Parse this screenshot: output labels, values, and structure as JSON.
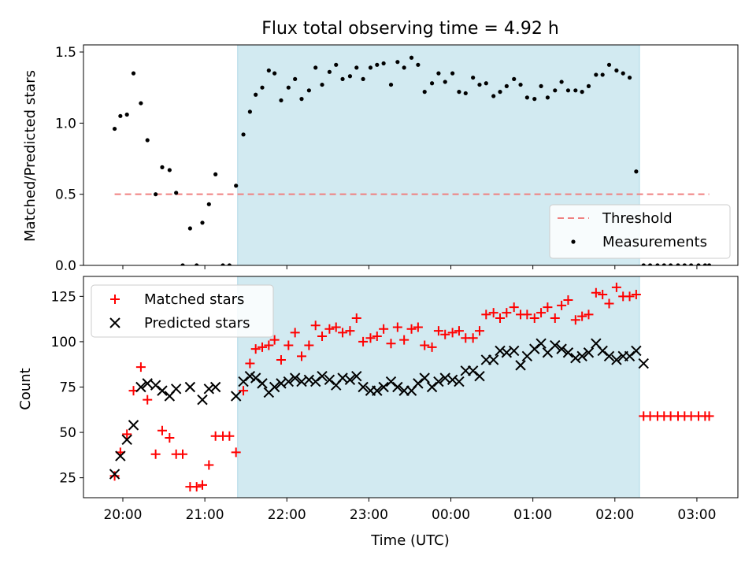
{
  "chart_data": [
    {
      "type": "scatter",
      "title": "Flux total observing time = 4.92 h",
      "ylabel": "Matched/Predicted stars",
      "xlabel": "",
      "ylim": [
        0,
        1.55
      ],
      "yticks": [
        0.0,
        0.5,
        1.0,
        1.5
      ],
      "ytick_labels": [
        "0.0",
        "0.5",
        "1.0",
        "1.5"
      ],
      "x_unit": "hours after 20:00 UTC",
      "xlim": [
        -0.48,
        7.5
      ],
      "shaded_region": {
        "x_start": 1.4,
        "x_end": 6.3,
        "color": "#add8e6"
      },
      "legend": {
        "placement": "lower right",
        "entries": [
          "Threshold",
          "Measurements"
        ]
      },
      "threshold": {
        "name": "Threshold",
        "y": 0.5,
        "x_start": -0.1,
        "x_end": 7.15,
        "color": "#f08080"
      },
      "series": [
        {
          "name": "Measurements",
          "color": "#000000",
          "points": [
            [
              -0.1,
              0.96
            ],
            [
              -0.03,
              1.05
            ],
            [
              0.05,
              1.06
            ],
            [
              0.13,
              1.35
            ],
            [
              0.22,
              1.14
            ],
            [
              0.3,
              0.88
            ],
            [
              0.4,
              0.5
            ],
            [
              0.48,
              0.69
            ],
            [
              0.57,
              0.67
            ],
            [
              0.65,
              0.51
            ],
            [
              0.73,
              0.0
            ],
            [
              0.82,
              0.26
            ],
            [
              0.9,
              0.0
            ],
            [
              0.97,
              0.3
            ],
            [
              1.05,
              0.43
            ],
            [
              1.13,
              0.64
            ],
            [
              1.22,
              0.0
            ],
            [
              1.3,
              0.0
            ],
            [
              1.38,
              0.56
            ],
            [
              1.47,
              0.92
            ],
            [
              1.55,
              1.08
            ],
            [
              1.62,
              1.2
            ],
            [
              1.7,
              1.25
            ],
            [
              1.78,
              1.37
            ],
            [
              1.85,
              1.35
            ],
            [
              1.93,
              1.16
            ],
            [
              2.02,
              1.25
            ],
            [
              2.1,
              1.31
            ],
            [
              2.18,
              1.17
            ],
            [
              2.27,
              1.23
            ],
            [
              2.35,
              1.39
            ],
            [
              2.43,
              1.27
            ],
            [
              2.52,
              1.36
            ],
            [
              2.6,
              1.41
            ],
            [
              2.68,
              1.31
            ],
            [
              2.77,
              1.33
            ],
            [
              2.85,
              1.39
            ],
            [
              2.93,
              1.31
            ],
            [
              3.02,
              1.39
            ],
            [
              3.1,
              1.41
            ],
            [
              3.18,
              1.42
            ],
            [
              3.27,
              1.27
            ],
            [
              3.35,
              1.43
            ],
            [
              3.43,
              1.39
            ],
            [
              3.52,
              1.46
            ],
            [
              3.6,
              1.41
            ],
            [
              3.68,
              1.22
            ],
            [
              3.77,
              1.28
            ],
            [
              3.85,
              1.35
            ],
            [
              3.93,
              1.29
            ],
            [
              4.02,
              1.35
            ],
            [
              4.1,
              1.22
            ],
            [
              4.18,
              1.21
            ],
            [
              4.27,
              1.32
            ],
            [
              4.35,
              1.27
            ],
            [
              4.43,
              1.28
            ],
            [
              4.52,
              1.19
            ],
            [
              4.6,
              1.22
            ],
            [
              4.68,
              1.26
            ],
            [
              4.77,
              1.31
            ],
            [
              4.85,
              1.27
            ],
            [
              4.93,
              1.18
            ],
            [
              5.02,
              1.17
            ],
            [
              5.1,
              1.26
            ],
            [
              5.18,
              1.18
            ],
            [
              5.27,
              1.23
            ],
            [
              5.35,
              1.29
            ],
            [
              5.43,
              1.23
            ],
            [
              5.52,
              1.23
            ],
            [
              5.6,
              1.22
            ],
            [
              5.68,
              1.26
            ],
            [
              5.77,
              1.34
            ],
            [
              5.85,
              1.34
            ],
            [
              5.93,
              1.41
            ],
            [
              6.02,
              1.37
            ],
            [
              6.1,
              1.35
            ],
            [
              6.18,
              1.32
            ],
            [
              6.26,
              0.66
            ],
            [
              6.35,
              0.0
            ],
            [
              6.43,
              0.0
            ],
            [
              6.52,
              0.0
            ],
            [
              6.6,
              0.0
            ],
            [
              6.68,
              0.0
            ],
            [
              6.77,
              0.0
            ],
            [
              6.85,
              0.0
            ],
            [
              6.93,
              0.0
            ],
            [
              7.02,
              0.0
            ],
            [
              7.1,
              0.0
            ],
            [
              7.15,
              0.0
            ]
          ]
        }
      ]
    },
    {
      "type": "scatter",
      "title": "",
      "xlabel": "Time (UTC)",
      "ylabel": "Count",
      "ylim": [
        14,
        136
      ],
      "yticks": [
        25,
        50,
        75,
        100,
        125
      ],
      "ytick_labels": [
        "25",
        "50",
        "75",
        "100",
        "125"
      ],
      "x_unit": "hours after 20:00 UTC",
      "xlim": [
        -0.48,
        7.5
      ],
      "xticks": [
        0,
        1,
        2,
        3,
        4,
        5,
        6,
        7
      ],
      "xtick_labels": [
        "20:00",
        "21:00",
        "22:00",
        "23:00",
        "00:00",
        "01:00",
        "02:00",
        "03:00"
      ],
      "shaded_region": {
        "x_start": 1.4,
        "x_end": 6.3,
        "color": "#add8e6"
      },
      "legend": {
        "placement": "upper left",
        "entries": [
          "Matched stars",
          "Predicted stars"
        ]
      },
      "series": [
        {
          "name": "Matched stars",
          "marker": "plus",
          "color": "#ff0000",
          "points": [
            [
              -0.1,
              26
            ],
            [
              -0.03,
              39
            ],
            [
              0.05,
              49
            ],
            [
              0.13,
              73
            ],
            [
              0.22,
              86
            ],
            [
              0.3,
              68
            ],
            [
              0.4,
              38
            ],
            [
              0.48,
              51
            ],
            [
              0.57,
              47
            ],
            [
              0.65,
              38
            ],
            [
              0.73,
              38
            ],
            [
              0.82,
              20
            ],
            [
              0.9,
              20
            ],
            [
              0.97,
              21
            ],
            [
              1.05,
              32
            ],
            [
              1.13,
              48
            ],
            [
              1.22,
              48
            ],
            [
              1.3,
              48
            ],
            [
              1.38,
              39
            ],
            [
              1.47,
              73
            ],
            [
              1.55,
              88
            ],
            [
              1.62,
              96
            ],
            [
              1.7,
              97
            ],
            [
              1.78,
              98
            ],
            [
              1.85,
              101
            ],
            [
              1.93,
              90
            ],
            [
              2.02,
              98
            ],
            [
              2.1,
              105
            ],
            [
              2.18,
              92
            ],
            [
              2.27,
              98
            ],
            [
              2.35,
              109
            ],
            [
              2.43,
              103
            ],
            [
              2.52,
              107
            ],
            [
              2.6,
              108
            ],
            [
              2.68,
              105
            ],
            [
              2.77,
              106
            ],
            [
              2.85,
              113
            ],
            [
              2.93,
              100
            ],
            [
              3.02,
              102
            ],
            [
              3.1,
              103
            ],
            [
              3.18,
              107
            ],
            [
              3.27,
              99
            ],
            [
              3.35,
              108
            ],
            [
              3.43,
              101
            ],
            [
              3.52,
              107
            ],
            [
              3.6,
              108
            ],
            [
              3.68,
              98
            ],
            [
              3.77,
              97
            ],
            [
              3.85,
              106
            ],
            [
              3.93,
              104
            ],
            [
              4.02,
              105
            ],
            [
              4.1,
              106
            ],
            [
              4.18,
              102
            ],
            [
              4.27,
              102
            ],
            [
              4.35,
              106
            ],
            [
              4.43,
              115
            ],
            [
              4.52,
              116
            ],
            [
              4.6,
              113
            ],
            [
              4.68,
              116
            ],
            [
              4.77,
              119
            ],
            [
              4.85,
              115
            ],
            [
              4.93,
              115
            ],
            [
              5.02,
              113
            ],
            [
              5.1,
              116
            ],
            [
              5.18,
              119
            ],
            [
              5.27,
              113
            ],
            [
              5.35,
              120
            ],
            [
              5.43,
              123
            ],
            [
              5.52,
              112
            ],
            [
              5.6,
              114
            ],
            [
              5.68,
              115
            ],
            [
              5.77,
              127
            ],
            [
              5.85,
              126
            ],
            [
              5.93,
              121
            ],
            [
              6.02,
              130
            ],
            [
              6.1,
              125
            ],
            [
              6.18,
              125
            ],
            [
              6.26,
              126
            ],
            [
              6.35,
              59
            ],
            [
              6.43,
              59
            ],
            [
              6.52,
              59
            ],
            [
              6.6,
              59
            ],
            [
              6.68,
              59
            ],
            [
              6.77,
              59
            ],
            [
              6.85,
              59
            ],
            [
              6.93,
              59
            ],
            [
              7.02,
              59
            ],
            [
              7.1,
              59
            ],
            [
              7.15,
              59
            ]
          ]
        },
        {
          "name": "Predicted stars",
          "marker": "x",
          "color": "#000000",
          "points": [
            [
              -0.1,
              27
            ],
            [
              -0.03,
              37
            ],
            [
              0.05,
              46
            ],
            [
              0.13,
              54
            ],
            [
              0.22,
              75
            ],
            [
              0.3,
              77
            ],
            [
              0.4,
              76
            ],
            [
              0.48,
              73
            ],
            [
              0.57,
              70
            ],
            [
              0.65,
              74
            ],
            [
              0.82,
              75
            ],
            [
              0.97,
              68
            ],
            [
              1.05,
              74
            ],
            [
              1.13,
              75
            ],
            [
              1.38,
              70
            ],
            [
              1.47,
              78
            ],
            [
              1.55,
              81
            ],
            [
              1.62,
              80
            ],
            [
              1.7,
              77
            ],
            [
              1.78,
              72
            ],
            [
              1.85,
              75
            ],
            [
              1.93,
              77
            ],
            [
              2.02,
              78
            ],
            [
              2.1,
              80
            ],
            [
              2.18,
              78
            ],
            [
              2.27,
              79
            ],
            [
              2.35,
              78
            ],
            [
              2.43,
              81
            ],
            [
              2.52,
              79
            ],
            [
              2.6,
              76
            ],
            [
              2.68,
              80
            ],
            [
              2.77,
              79
            ],
            [
              2.85,
              81
            ],
            [
              2.93,
              75
            ],
            [
              3.02,
              73
            ],
            [
              3.1,
              73
            ],
            [
              3.18,
              75
            ],
            [
              3.27,
              78
            ],
            [
              3.35,
              75
            ],
            [
              3.43,
              73
            ],
            [
              3.52,
              73
            ],
            [
              3.6,
              77
            ],
            [
              3.68,
              80
            ],
            [
              3.77,
              75
            ],
            [
              3.85,
              78
            ],
            [
              3.93,
              80
            ],
            [
              4.02,
              79
            ],
            [
              4.1,
              78
            ],
            [
              4.18,
              84
            ],
            [
              4.27,
              84
            ],
            [
              4.35,
              81
            ],
            [
              4.43,
              90
            ],
            [
              4.52,
              90
            ],
            [
              4.6,
              95
            ],
            [
              4.68,
              94
            ],
            [
              4.77,
              95
            ],
            [
              4.85,
              87
            ],
            [
              4.93,
              92
            ],
            [
              5.02,
              96
            ],
            [
              5.1,
              99
            ],
            [
              5.18,
              94
            ],
            [
              5.27,
              98
            ],
            [
              5.35,
              96
            ],
            [
              5.43,
              94
            ],
            [
              5.52,
              91
            ],
            [
              5.6,
              92
            ],
            [
              5.68,
              94
            ],
            [
              5.77,
              99
            ],
            [
              5.85,
              95
            ],
            [
              5.93,
              92
            ],
            [
              6.02,
              90
            ],
            [
              6.1,
              92
            ],
            [
              6.18,
              92
            ],
            [
              6.26,
              95
            ],
            [
              6.35,
              88
            ]
          ]
        }
      ]
    }
  ]
}
